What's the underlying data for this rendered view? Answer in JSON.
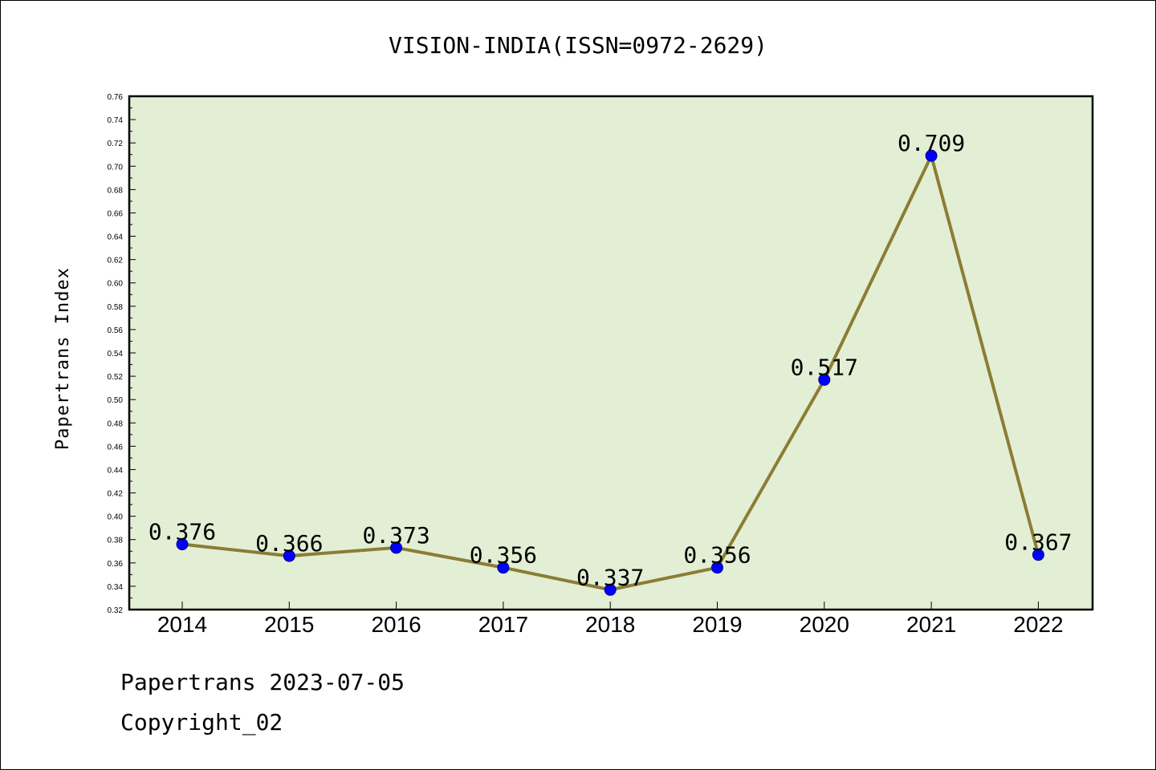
{
  "chart_data": {
    "type": "line",
    "title": "VISION-INDIA(ISSN=0972-2629)",
    "ylabel": "Papertrans Index",
    "xlabel": "",
    "categories": [
      "2014",
      "2015",
      "2016",
      "2017",
      "2018",
      "2019",
      "2020",
      "2021",
      "2022"
    ],
    "series": [
      {
        "values": [
          0.376,
          0.366,
          0.373,
          0.356,
          0.337,
          0.356,
          0.517,
          0.709,
          0.367
        ],
        "labels": [
          "0.376",
          "0.366",
          "0.373",
          "0.356",
          "0.337",
          "0.356",
          "0.517",
          "0.709",
          "0.367"
        ]
      }
    ],
    "ylim": [
      0.32,
      0.76
    ],
    "yticks": [
      "0.32",
      "0.34",
      "0.36",
      "0.38",
      "0.40",
      "0.42",
      "0.44",
      "0.46",
      "0.48",
      "0.50",
      "0.52",
      "0.54",
      "0.56",
      "0.58",
      "0.60",
      "0.62",
      "0.64",
      "0.66",
      "0.68",
      "0.70",
      "0.72",
      "0.74",
      "0.76"
    ],
    "grid": false,
    "colors": {
      "plot_background": "#e2efd5",
      "line": "#8b7d34",
      "marker": "#0000ff",
      "frame": "#000000"
    }
  },
  "footer": {
    "line1": "Papertrans 2023-07-05",
    "line2": "Copyright_02"
  }
}
